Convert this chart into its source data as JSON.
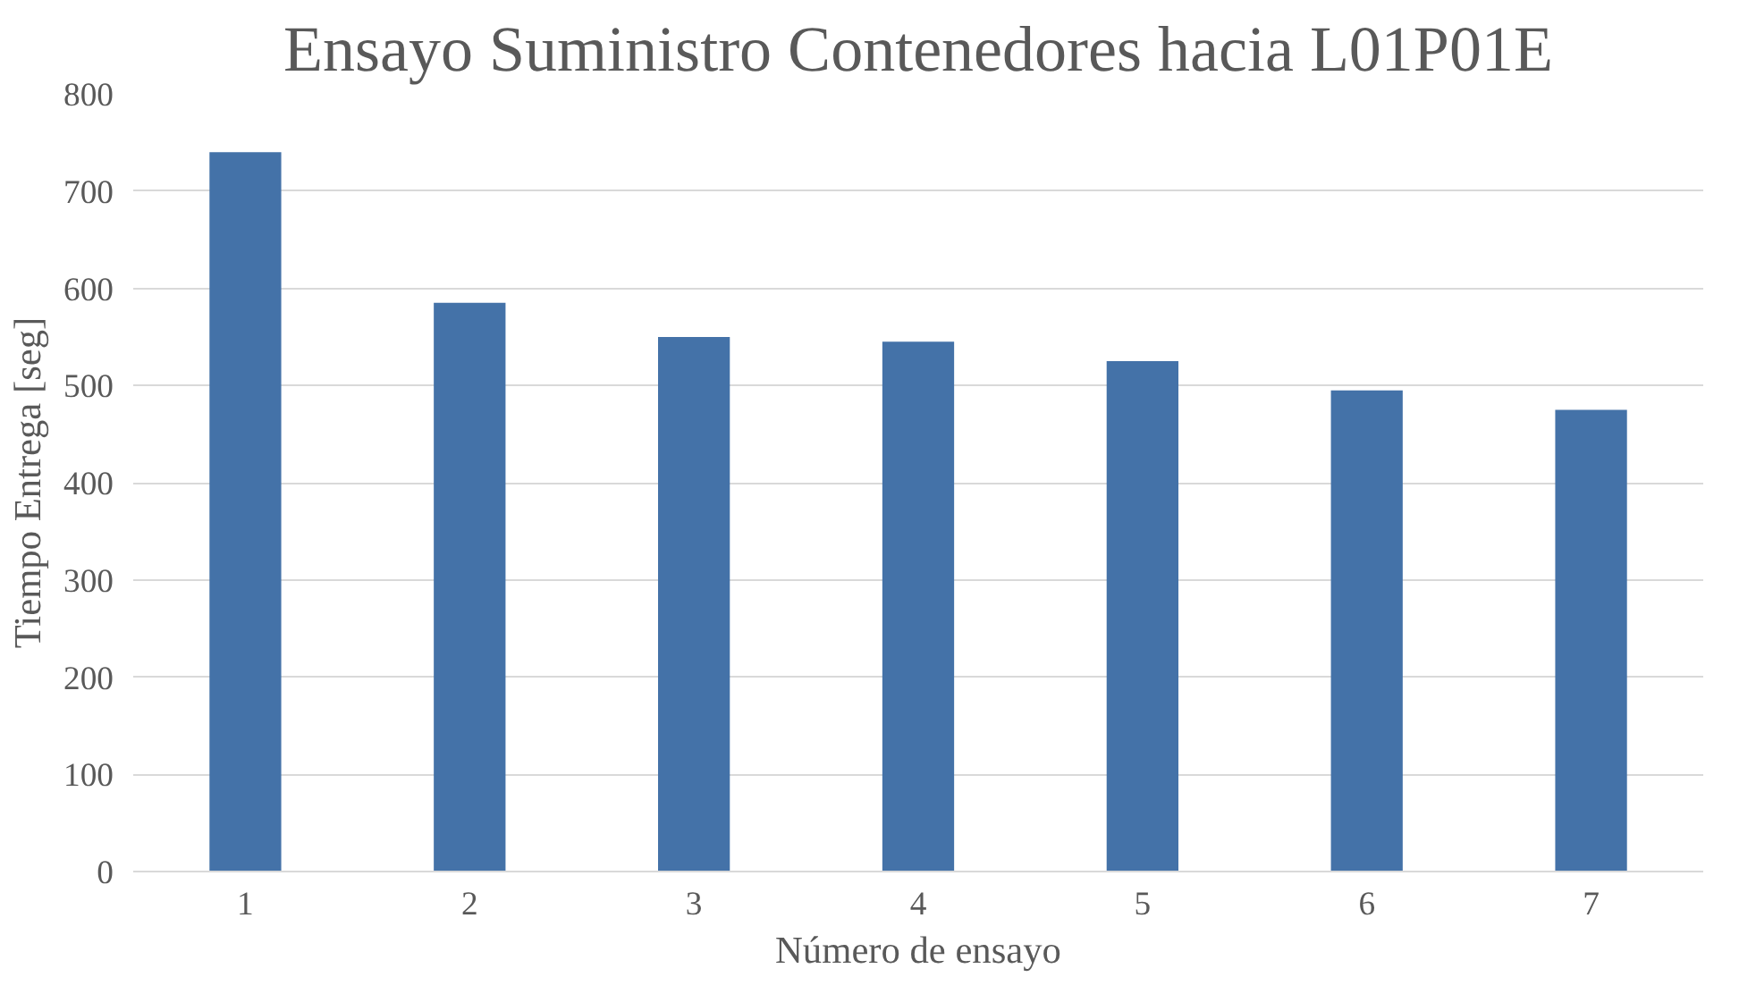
{
  "chart_data": {
    "type": "bar",
    "title": "Ensayo Suministro Contenedores hacia L01P01E",
    "xlabel": "Número de ensayo",
    "ylabel": "Tiempo Entrega [seg]",
    "categories": [
      "1",
      "2",
      "3",
      "4",
      "5",
      "6",
      "7"
    ],
    "values": [
      740,
      585,
      550,
      545,
      525,
      495,
      475
    ],
    "color": "#4472a8",
    "ylim": [
      0,
      800
    ],
    "yticks": [
      0,
      100,
      200,
      300,
      400,
      500,
      600,
      700,
      800
    ],
    "grid": "y"
  }
}
